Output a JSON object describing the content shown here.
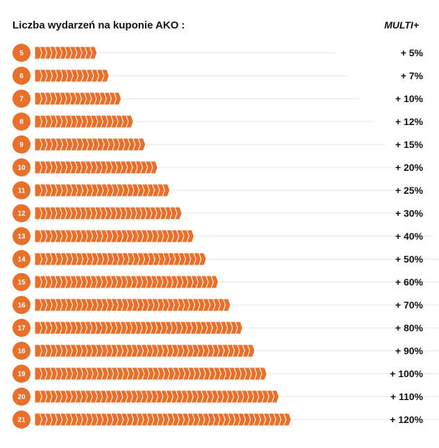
{
  "header": {
    "title": "Liczba wydarzeń na kuponie AKO :",
    "column_label": "MULTI+"
  },
  "colors": {
    "accent": "#e8702a",
    "guide_line": "#e6e6e6",
    "text": "#111111",
    "badge_text": "#ffffff"
  },
  "chart_data": {
    "type": "bar",
    "title": "Liczba wydarzeń na kuponie AKO :",
    "xlabel": "",
    "ylabel": "",
    "categories": [
      "5",
      "6",
      "7",
      "8",
      "9",
      "10",
      "11",
      "12",
      "13",
      "14",
      "15",
      "16",
      "17",
      "18",
      "19",
      "20",
      "21"
    ],
    "values": [
      5,
      6,
      7,
      8,
      9,
      10,
      11,
      12,
      13,
      14,
      15,
      16,
      17,
      18,
      19,
      20,
      21
    ],
    "bonus_labels": [
      "+ 5%",
      "+ 7%",
      "+ 10%",
      "+ 12%",
      "+ 15%",
      "+ 20%",
      "+ 25%",
      "+ 30%",
      "+ 40%",
      "+ 50%",
      "+ 60%",
      "+ 70%",
      "+ 80%",
      "+ 90%",
      "+ 100%",
      "+ 110%",
      "+ 120%"
    ],
    "xlim": [
      0,
      21
    ],
    "grid": false,
    "legend": "none"
  }
}
